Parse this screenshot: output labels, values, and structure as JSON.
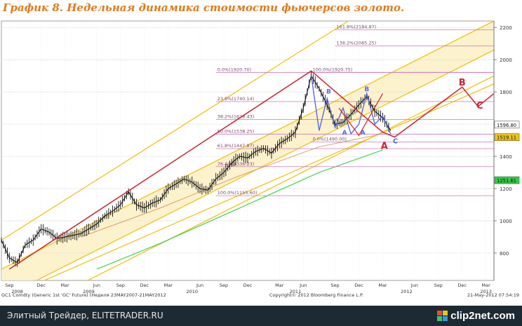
{
  "title": "График 8.   Недельная динамика стоимости фьючерсов золото.",
  "footer": {
    "left_text": "Элитный Трейдер, ELITETRADER.RU",
    "logo": "clip2net.com",
    "logo_colors": [
      "#e74c3c",
      "#f1c40f",
      "#2ecc71",
      "#3498db"
    ]
  },
  "colors": {
    "price": "#111111",
    "trend": "#cc2233",
    "channel": "#f0c419",
    "green_ma": "#33cc44",
    "tan_ma": "#d9a066",
    "blue": "#5b6bd8",
    "fib": "#c97ab7"
  },
  "chart_data": {
    "type": "line",
    "y_ticks": [
      800,
      1000,
      1200,
      1400,
      1600,
      1800,
      2000,
      2200
    ],
    "ylim": [
      630,
      2240
    ],
    "xlim": [
      0,
      62
    ],
    "x_month_labels": [
      {
        "x": 1,
        "text": "Sep"
      },
      {
        "x": 5,
        "text": "Dec"
      },
      {
        "x": 8,
        "text": "Mar"
      },
      {
        "x": 12,
        "text": "Jun"
      },
      {
        "x": 15,
        "text": "Sep"
      },
      {
        "x": 18,
        "text": "Dec"
      },
      {
        "x": 21,
        "text": "Mar"
      },
      {
        "x": 25,
        "text": "Jun"
      },
      {
        "x": 28,
        "text": "Sep"
      },
      {
        "x": 31,
        "text": "Dec"
      },
      {
        "x": 35,
        "text": "Mar"
      },
      {
        "x": 38,
        "text": "Jun"
      },
      {
        "x": 42,
        "text": "Sep"
      },
      {
        "x": 45,
        "text": "Dec"
      },
      {
        "x": 48,
        "text": "Mar"
      },
      {
        "x": 52,
        "text": "Jun"
      },
      {
        "x": 55,
        "text": "Sep"
      },
      {
        "x": 58,
        "text": "Dec"
      },
      {
        "x": 61,
        "text": "Mar"
      }
    ],
    "x_year_labels": [
      {
        "x": 2,
        "text": "2008"
      },
      {
        "x": 11,
        "text": "2009"
      },
      {
        "x": 24,
        "text": "2010"
      },
      {
        "x": 37,
        "text": "2011"
      },
      {
        "x": 51,
        "text": "2012"
      },
      {
        "x": 61,
        "text": "2013"
      }
    ],
    "price": {
      "x": [
        0,
        1,
        2,
        3,
        4,
        5,
        6,
        7,
        8,
        9,
        10,
        11,
        12,
        13,
        14,
        15,
        16,
        17,
        18,
        19,
        20,
        21,
        22,
        23,
        24,
        25,
        26,
        27,
        28,
        29,
        30,
        31,
        32,
        33,
        34,
        35,
        36,
        37,
        38,
        39,
        40,
        41,
        42,
        43,
        44,
        45,
        46,
        47,
        48,
        49
      ],
      "y": [
        880,
        770,
        740,
        850,
        880,
        950,
        930,
        890,
        900,
        910,
        920,
        950,
        980,
        1030,
        1060,
        1100,
        1180,
        1100,
        1080,
        1110,
        1130,
        1200,
        1230,
        1260,
        1240,
        1200,
        1190,
        1260,
        1300,
        1360,
        1400,
        1390,
        1430,
        1450,
        1420,
        1480,
        1510,
        1550,
        1700,
        1900,
        1820,
        1720,
        1600,
        1610,
        1660,
        1720,
        1770,
        1680,
        1640,
        1560
      ]
    },
    "trend_line": {
      "x": [
        1,
        39,
        48,
        49.5,
        58,
        60,
        62
      ],
      "y": [
        700,
        1930,
        1550,
        1520,
        1830,
        1710,
        1790
      ]
    },
    "projection_line": {
      "x": [
        42.5,
        45,
        48
      ],
      "y": [
        1700,
        1530,
        1790
      ]
    },
    "blue_pattern": {
      "x": [
        39,
        40,
        41,
        42,
        43,
        44,
        45,
        46,
        47,
        48,
        49
      ],
      "y": [
        1900,
        1560,
        1760,
        1580,
        1700,
        1540,
        1600,
        1790,
        1600,
        1650,
        1540
      ]
    },
    "channel_lines": [
      {
        "x": [
          0,
          52
        ],
        "y": [
          880,
          2500
        ]
      },
      {
        "x": [
          0,
          62
        ],
        "y": [
          700,
          2240
        ]
      },
      {
        "x": [
          0,
          62
        ],
        "y": [
          520,
          2060
        ]
      },
      {
        "x": [
          0,
          62
        ],
        "y": [
          360,
          1900
        ]
      },
      {
        "x": [
          4,
          62
        ],
        "y": [
          600,
          1850
        ]
      }
    ],
    "green_ma": {
      "x": [
        12,
        20,
        30,
        40,
        48
      ],
      "y": [
        700,
        860,
        1080,
        1300,
        1440
      ]
    },
    "tan_ma": {
      "x": [
        10,
        20,
        30,
        40,
        48
      ],
      "y": [
        900,
        1080,
        1280,
        1460,
        1540
      ]
    },
    "fib_levels": [
      {
        "label": "161.8%(2184.87)",
        "y": 2185,
        "x_start": 42
      },
      {
        "label": "138.2%(2085.25)",
        "y": 2085,
        "x_start": 42
      },
      {
        "label": "0.0%(1920.70)",
        "y": 1921,
        "x_start": 27
      },
      {
        "label": "100.0%(1920.75)",
        "y": 1921,
        "x_start": 39
      },
      {
        "label": "23.6%(1740.14)",
        "y": 1740,
        "x_start": 27
      },
      {
        "label": "38.2%(1628.43)",
        "y": 1628,
        "x_start": 27
      },
      {
        "label": "50.0%(1538.25)",
        "y": 1538,
        "x_start": 27
      },
      {
        "label": "0.0%(1490.00)",
        "y": 1490,
        "x_start": 39
      },
      {
        "label": "61.8%(1447.87)",
        "y": 1448,
        "x_start": 27
      },
      {
        "label": "76.4%(1336.23)",
        "y": 1336,
        "x_start": 27
      },
      {
        "label": "100.0%(1155.60)",
        "y": 1156,
        "x_start": 27
      }
    ],
    "value_tags": [
      {
        "label": "1596.80",
        "y": 1597,
        "color": "#ffffff"
      },
      {
        "label": "1519.11",
        "y": 1519,
        "color": "#f0c419"
      },
      {
        "label": "1251.61",
        "y": 1252,
        "color": "#33cc44"
      }
    ],
    "annotations": [
      {
        "text": "B",
        "x": 58,
        "y": 1840,
        "color": "#cc2233",
        "size": 13
      },
      {
        "text": "C",
        "x": 60.2,
        "y": 1695,
        "color": "#cc2233",
        "size": 13
      },
      {
        "text": "A",
        "x": 48.2,
        "y": 1445,
        "color": "#cc2233",
        "size": 13
      },
      {
        "text": "C",
        "x": 49.6,
        "y": 1480,
        "color": "#5b6bd8",
        "size": 10
      },
      {
        "text": "A",
        "x": 43.2,
        "y": 1535,
        "color": "#5b6bd8",
        "size": 9
      },
      {
        "text": "B",
        "x": 46,
        "y": 1805,
        "color": "#5b6bd8",
        "size": 9
      },
      {
        "text": "A",
        "x": 45.5,
        "y": 1535,
        "color": "#5b6bd8",
        "size": 9
      },
      {
        "text": "B",
        "x": 41.2,
        "y": 1790,
        "color": "#5b6bd8",
        "size": 9
      }
    ],
    "footer_left": "GC1 Comdty (Generic 1st 'GC' Future) (Неделя 23MAY2007-21MAY2012",
    "footer_center": "Copyright© 2012 Bloomberg Finance L.P.",
    "footer_right": "21-May-2012 07:54:19"
  }
}
